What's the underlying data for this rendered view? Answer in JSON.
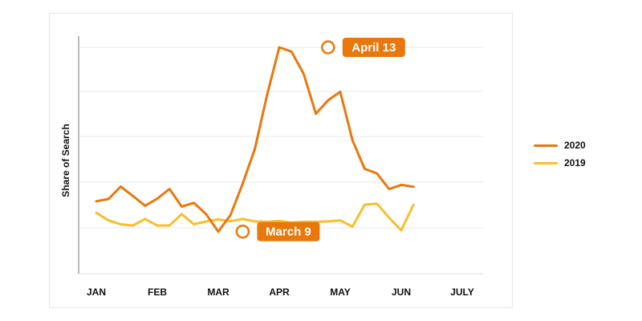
{
  "chart_data": {
    "type": "line",
    "title": "",
    "ylabel": "Share of Search",
    "xlabel": "",
    "grid": true,
    "legend_position": "right",
    "ylim": [
      0,
      100
    ],
    "months": [
      "JAN",
      "FEB",
      "MAR",
      "APR",
      "MAY",
      "JUN",
      "JULY"
    ],
    "x": [
      0,
      0.2,
      0.4,
      0.6,
      0.8,
      1.0,
      1.2,
      1.4,
      1.6,
      1.8,
      2.0,
      2.2,
      2.4,
      2.6,
      2.8,
      3.0,
      3.2,
      3.4,
      3.6,
      3.8,
      4.0,
      4.2,
      4.4,
      4.6,
      4.8,
      5.0,
      5.2,
      5.4,
      5.6,
      5.8
    ],
    "series": [
      {
        "name": "2020",
        "color": "#E8780C",
        "values": [
          24.5,
          25.6,
          31.7,
          27.1,
          22.3,
          25.8,
          30.5,
          21.9,
          23.7,
          18.2,
          9.6,
          17.7,
          33.1,
          50.2,
          76.6,
          100.0,
          97.9,
          87.0,
          67.4,
          74.0,
          78.2,
          54.4,
          40.4,
          38.2,
          30.5,
          32.5,
          31.6,
          null,
          null,
          null
        ]
      },
      {
        "name": "2019",
        "color": "#F9BE2E",
        "values": [
          18.9,
          15.1,
          13.2,
          12.6,
          15.8,
          12.6,
          12.6,
          18.2,
          13.2,
          14.6,
          15.6,
          14.7,
          15.8,
          14.6,
          14.4,
          14.8,
          14.0,
          14.4,
          14.4,
          14.6,
          15.1,
          12.0,
          22.8,
          23.3,
          16.5,
          10.2,
          22.8,
          null,
          null,
          null
        ]
      }
    ],
    "annotations": [
      {
        "label": "March 9",
        "series": "2020",
        "x": 2.4,
        "y": 9.6
      },
      {
        "label": "April 13",
        "series": "2020",
        "x": 3.8,
        "y": 100.0
      }
    ]
  },
  "legend": {
    "items": [
      {
        "label": "2020",
        "color": "#E8780C"
      },
      {
        "label": "2019",
        "color": "#F9BE2E"
      }
    ]
  }
}
